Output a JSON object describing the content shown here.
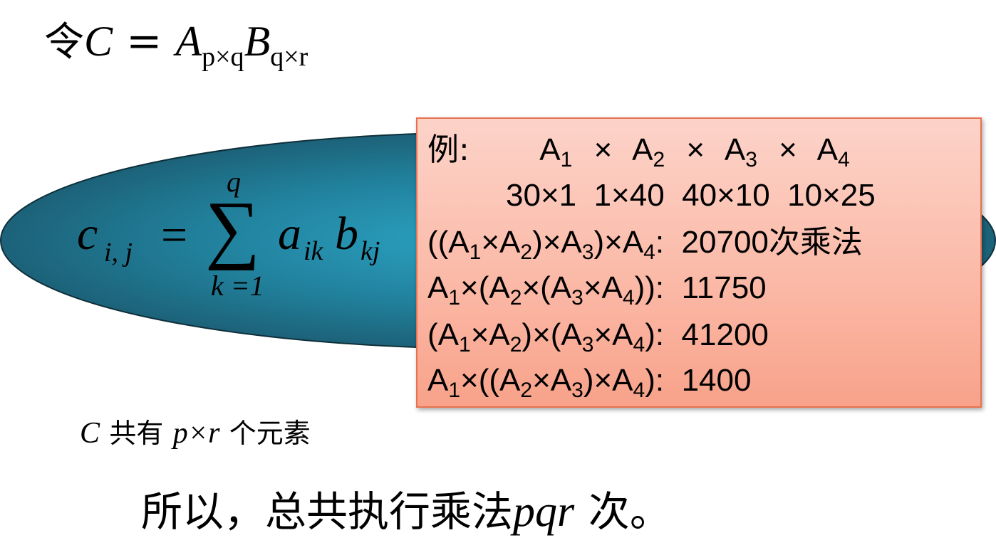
{
  "title_formula": {
    "prefix": "令",
    "lhs": "C",
    "eq": "=",
    "a": "A",
    "a_sub": "p×q",
    "b": "B",
    "b_sub": "q×r"
  },
  "sum_formula": {
    "c": "c",
    "c_sub": "i, j",
    "eq": "=",
    "sigma": "∑",
    "upper": "q",
    "lower": "k =1",
    "a": "a",
    "a_sub": "ik",
    "b": "b",
    "b_sub": "kj"
  },
  "example": {
    "label": "例:",
    "matrices": [
      {
        "name": "A",
        "index": "1"
      },
      {
        "name": "A",
        "index": "2"
      },
      {
        "name": "A",
        "index": "3"
      },
      {
        "name": "A",
        "index": "4"
      }
    ],
    "times": "×",
    "dims": [
      "30×1",
      "1×40",
      "40×10",
      "10×25"
    ],
    "orders": [
      {
        "count": "20700",
        "suffix": "次乘法"
      },
      {
        "count": "11750",
        "suffix": ""
      },
      {
        "count": "41200",
        "suffix": ""
      },
      {
        "count": "1400",
        "suffix": ""
      }
    ]
  },
  "elements_note": {
    "c": "C",
    "text1": "共有",
    "pr": "p×r",
    "text2": "个元素"
  },
  "conclusion": {
    "text1": "所以，总共执行乘法",
    "pqr": "pqr",
    "text2": "次。"
  },
  "colors": {
    "ellipse_center": "#2ba3c4",
    "ellipse_edge": "#1b5a70",
    "box_top": "#fcd3c9",
    "box_bottom": "#f8a28a",
    "box_border": "#e8724f"
  }
}
